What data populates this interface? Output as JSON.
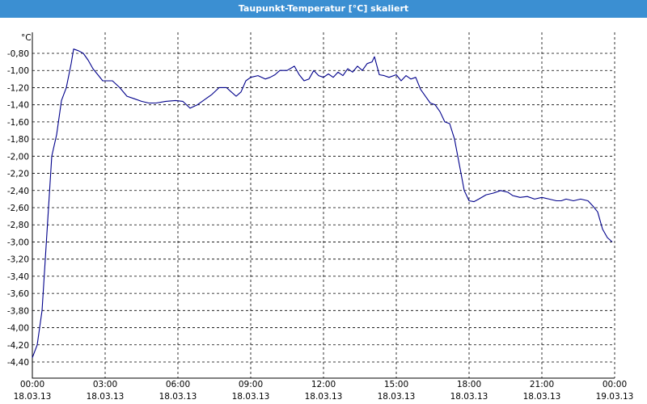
{
  "window": {
    "title": "Taupunkt-Temperatur [°C] skaliert"
  },
  "colors": {
    "titlebar": "#3b8fd2",
    "line": "#00008b",
    "grid": "#000000"
  },
  "chart_data": {
    "type": "line",
    "title": "Taupunkt-Temperatur [°C] skaliert",
    "ylabel": "°C",
    "xlabel": "",
    "grid": true,
    "ylim": [
      -4.4,
      -0.6
    ],
    "xlim": [
      0,
      24
    ],
    "y_ticks": [
      "-0,80",
      "-1,00",
      "-1,20",
      "-1,40",
      "-1,60",
      "-1,80",
      "-2,00",
      "-2,20",
      "-2,40",
      "-2,60",
      "-2,80",
      "-3,00",
      "-3,20",
      "-3,40",
      "-3,60",
      "-3,80",
      "-4,00",
      "-4,20",
      "-4,40"
    ],
    "x_ticks": [
      {
        "time": "00:00",
        "date": "18.03.13"
      },
      {
        "time": "03:00",
        "date": "18.03.13"
      },
      {
        "time": "06:00",
        "date": "18.03.13"
      },
      {
        "time": "09:00",
        "date": "18.03.13"
      },
      {
        "time": "12:00",
        "date": "18.03.13"
      },
      {
        "time": "15:00",
        "date": "18.03.13"
      },
      {
        "time": "18:00",
        "date": "18.03.13"
      },
      {
        "time": "21:00",
        "date": "18.03.13"
      },
      {
        "time": "00:00",
        "date": "19.03.13"
      }
    ],
    "series": [
      {
        "x": [
          0.0,
          0.2,
          0.4,
          0.6,
          0.8,
          1.0,
          1.2,
          1.4,
          1.6,
          1.7,
          1.9,
          2.1,
          2.3,
          2.5,
          2.7,
          2.9,
          3.1,
          3.3,
          3.6,
          3.9,
          4.2,
          4.5,
          4.8,
          5.1,
          5.5,
          5.9,
          6.2,
          6.5,
          6.8,
          7.1,
          7.4,
          7.7,
          8.0,
          8.2,
          8.4,
          8.6,
          8.8,
          9.0,
          9.3,
          9.6,
          9.8,
          10.0,
          10.2,
          10.5,
          10.8,
          11.0,
          11.2,
          11.4,
          11.6,
          11.8,
          12.0,
          12.2,
          12.4,
          12.6,
          12.8,
          13.0,
          13.2,
          13.4,
          13.6,
          13.8,
          14.0,
          14.1,
          14.3,
          14.5,
          14.7,
          15.0,
          15.2,
          15.4,
          15.6,
          15.8,
          16.0,
          16.2,
          16.4,
          16.6,
          16.8,
          17.0,
          17.2,
          17.4,
          17.6,
          17.8,
          18.0,
          18.2,
          18.4,
          18.7,
          19.0,
          19.3,
          19.6,
          19.8,
          20.1,
          20.4,
          20.7,
          21.0,
          21.3,
          21.6,
          21.8,
          22.0,
          22.3,
          22.6,
          22.9,
          23.1,
          23.3,
          23.5,
          23.7,
          23.9
        ],
        "y": [
          -4.35,
          -4.2,
          -3.8,
          -2.9,
          -2.0,
          -1.75,
          -1.35,
          -1.2,
          -0.92,
          -0.75,
          -0.77,
          -0.8,
          -0.88,
          -0.98,
          -1.05,
          -1.12,
          -1.12,
          -1.12,
          -1.2,
          -1.3,
          -1.33,
          -1.36,
          -1.38,
          -1.38,
          -1.36,
          -1.35,
          -1.36,
          -1.44,
          -1.4,
          -1.34,
          -1.28,
          -1.2,
          -1.2,
          -1.25,
          -1.3,
          -1.25,
          -1.12,
          -1.08,
          -1.06,
          -1.1,
          -1.08,
          -1.05,
          -1.0,
          -1.0,
          -0.95,
          -1.05,
          -1.12,
          -1.1,
          -1.0,
          -1.06,
          -1.08,
          -1.04,
          -1.08,
          -1.02,
          -1.06,
          -0.98,
          -1.02,
          -0.95,
          -1.0,
          -0.92,
          -0.9,
          -0.84,
          -1.05,
          -1.06,
          -1.08,
          -1.05,
          -1.12,
          -1.06,
          -1.1,
          -1.08,
          -1.22,
          -1.3,
          -1.38,
          -1.4,
          -1.48,
          -1.6,
          -1.62,
          -1.8,
          -2.1,
          -2.4,
          -2.52,
          -2.53,
          -2.5,
          -2.45,
          -2.43,
          -2.4,
          -2.42,
          -2.46,
          -2.48,
          -2.47,
          -2.5,
          -2.48,
          -2.5,
          -2.52,
          -2.52,
          -2.5,
          -2.52,
          -2.5,
          -2.52,
          -2.58,
          -2.65,
          -2.85,
          -2.95,
          -3.0
        ]
      }
    ]
  }
}
